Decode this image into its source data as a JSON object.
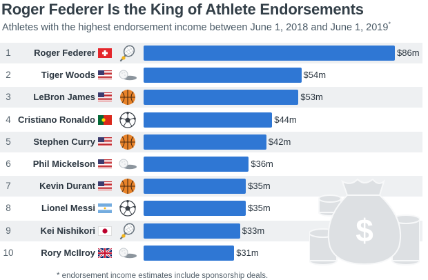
{
  "title": "Roger Federer Is the King of Athlete Endorsements",
  "subtitle": "Athletes with the highest endorsement income between June 1, 2018 and June 1, 2019",
  "subtitle_mark": "*",
  "footnote": "* endorsement income estimates include sponsorship deals.",
  "bar_color": "#2f77d4",
  "chart_data": {
    "type": "bar",
    "orientation": "horizontal",
    "value_prefix": "$",
    "value_suffix": "m",
    "categories": [
      "Roger Federer",
      "Tiger Woods",
      "LeBron James",
      "Cristiano Ronaldo",
      "Stephen Curry",
      "Phil Mickelson",
      "Kevin Durant",
      "Lionel Messi",
      "Kei Nishikori",
      "Rory McIlroy"
    ],
    "values": [
      86,
      54,
      53,
      44,
      42,
      36,
      35,
      35,
      33,
      31
    ],
    "labels": [
      "$86m",
      "$54m",
      "$53m",
      "$44m",
      "$42m",
      "$36m",
      "$35m",
      "$35m",
      "$33m",
      "$31m"
    ],
    "ranks": [
      "1",
      "2",
      "3",
      "4",
      "5",
      "6",
      "7",
      "8",
      "9",
      "10"
    ],
    "flags": [
      "switzerland-flag",
      "usa-flag",
      "usa-flag",
      "portugal-flag",
      "usa-flag",
      "usa-flag",
      "usa-flag",
      "argentina-flag",
      "japan-flag",
      "uk-flag"
    ],
    "sports": [
      "tennis-icon",
      "golf-icon",
      "basketball-icon",
      "soccer-ball-icon",
      "basketball-icon",
      "golf-icon",
      "basketball-icon",
      "soccer-ball-icon",
      "tennis-icon",
      "golf-icon"
    ],
    "xlim": [
      0,
      86
    ],
    "grid": false,
    "legend": "none"
  }
}
